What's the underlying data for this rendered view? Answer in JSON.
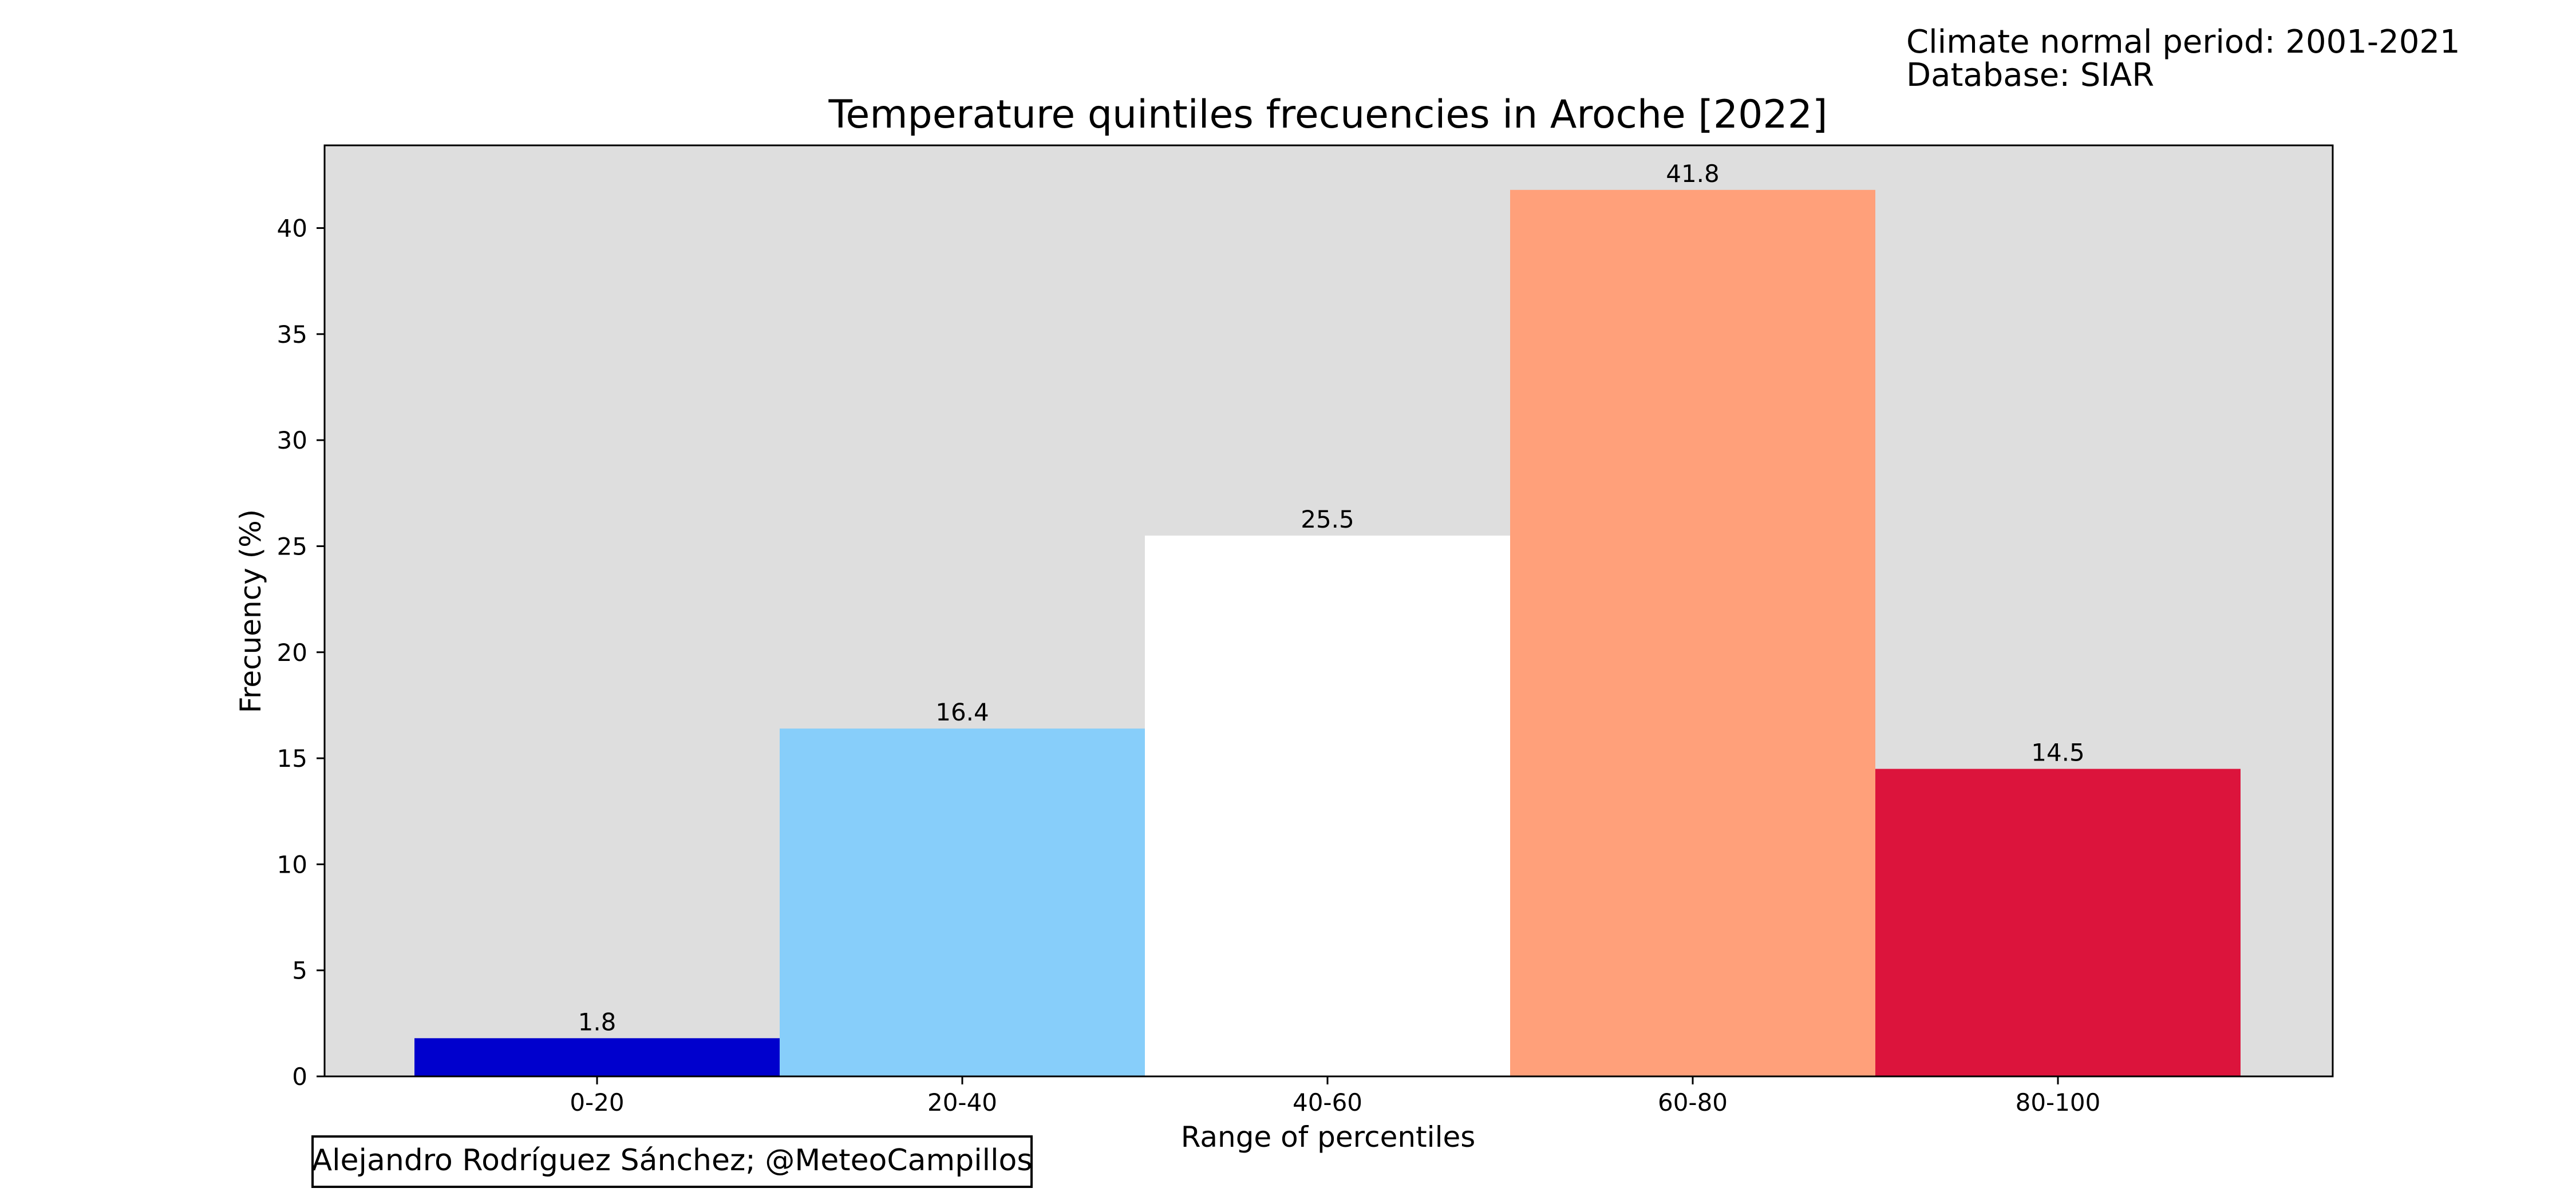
{
  "header": {
    "normal_period": "Climate normal period: 2001-2021",
    "database": "Database: SIAR"
  },
  "credit": "Alejandro Rodríguez Sánchez; @MeteoCampillos",
  "chart_data": {
    "type": "bar",
    "title": "Temperature quintiles frecuencies in Aroche [2022]",
    "xlabel": "Range of percentiles",
    "ylabel": "Frecuency (%)",
    "categories": [
      "0-20",
      "20-40",
      "40-60",
      "60-80",
      "80-100"
    ],
    "values": [
      1.8,
      16.4,
      25.5,
      41.8,
      14.5
    ],
    "value_labels": [
      "1.8",
      "16.4",
      "25.5",
      "41.8",
      "14.5"
    ],
    "bar_colors": [
      "#0000cd",
      "#87cefa",
      "#ffffff",
      "#ffa07a",
      "#dc143c"
    ],
    "ylim": [
      0,
      43.9
    ],
    "yticks": [
      0,
      5,
      10,
      15,
      20,
      25,
      30,
      35,
      40
    ],
    "ytick_labels": [
      "0",
      "5",
      "10",
      "15",
      "20",
      "25",
      "30",
      "35",
      "40"
    ],
    "plot_background": "#dedede",
    "grid": false,
    "legend": "none"
  }
}
